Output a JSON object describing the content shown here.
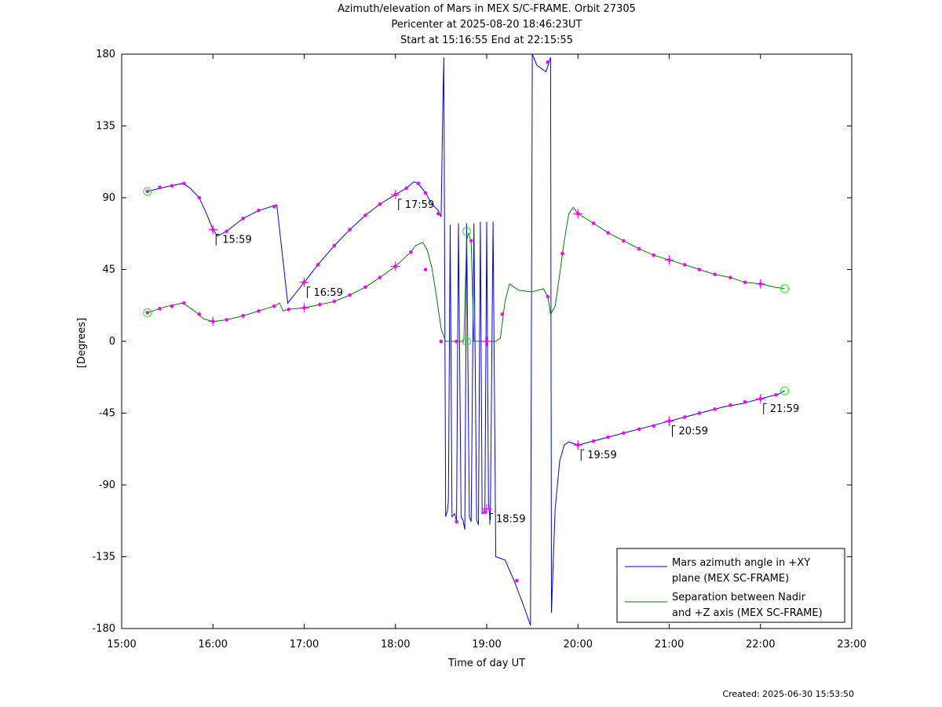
{
  "header": {
    "title_line1": "Azimuth/elevation of Mars in MEX S/C-FRAME.  Orbit 27305",
    "title_line2": "Pericenter at 2025-08-20 18:46:23UT",
    "title_line3": "Start at 15:16:55 End at 22:15:55"
  },
  "footer": {
    "created": "Created: 2025-06-30 15:53:50"
  },
  "colors": {
    "azimuth": "#0000ff",
    "separation": "#008000",
    "marker": "#ff00ff",
    "endpoint": "#00ff00",
    "axis": "#000000"
  },
  "chart_data": {
    "type": "line",
    "xlabel": "Time of day UT",
    "ylabel": "[Degrees]",
    "xlim": [
      15.0,
      23.0
    ],
    "ylim": [
      -180,
      180
    ],
    "xticks": [
      15,
      16,
      17,
      18,
      19,
      20,
      21,
      22,
      23
    ],
    "xtick_labels": [
      "15:00",
      "16:00",
      "17:00",
      "18:00",
      "19:00",
      "20:00",
      "21:00",
      "22:00",
      "23:00"
    ],
    "yticks": [
      180,
      135,
      90,
      45,
      0,
      -45,
      -90,
      -135,
      -180
    ],
    "ytick_labels": [
      "180",
      "135",
      "90",
      "45",
      "0",
      "-45",
      "-90",
      "-135",
      "-180"
    ],
    "legend_position": "bottom-right",
    "series": [
      {
        "name": "Mars azimuth angle in +XY plane (MEX SC-FRAME)",
        "legend_lines": [
          "Mars azimuth angle in +XY",
          "plane (MEX SC-FRAME)"
        ],
        "color": "#0000ff",
        "points": [
          [
            15.282,
            94
          ],
          [
            15.5,
            97
          ],
          [
            15.67,
            99
          ],
          [
            15.75,
            96
          ],
          [
            15.85,
            90
          ],
          [
            15.93,
            80
          ],
          [
            16.0,
            70
          ],
          [
            16.05,
            66
          ],
          [
            16.15,
            69
          ],
          [
            16.33,
            77
          ],
          [
            16.5,
            82
          ],
          [
            16.7,
            85.5
          ],
          [
            16.82,
            24
          ],
          [
            17.0,
            37
          ],
          [
            17.15,
            48
          ],
          [
            17.33,
            60
          ],
          [
            17.5,
            70
          ],
          [
            17.67,
            79
          ],
          [
            17.83,
            86
          ],
          [
            18.0,
            92
          ],
          [
            18.12,
            96
          ],
          [
            18.2,
            100
          ],
          [
            18.25,
            99
          ],
          [
            18.33,
            93
          ],
          [
            18.4,
            86
          ],
          [
            18.47,
            82
          ],
          [
            18.5,
            78
          ],
          [
            18.52,
            150
          ],
          [
            18.53,
            178
          ],
          [
            18.55,
            -110
          ],
          [
            18.57,
            -106
          ],
          [
            18.58,
            -100
          ],
          [
            18.6,
            73
          ],
          [
            18.62,
            -110
          ],
          [
            18.65,
            -108
          ],
          [
            18.67,
            -113
          ],
          [
            18.69,
            74
          ],
          [
            18.72,
            -110
          ],
          [
            18.74,
            -112
          ],
          [
            18.76,
            -118
          ],
          [
            18.78,
            74
          ],
          [
            18.81,
            -110
          ],
          [
            18.83,
            -113
          ],
          [
            18.86,
            74
          ],
          [
            18.89,
            -112
          ],
          [
            18.91,
            -115
          ],
          [
            18.93,
            75
          ],
          [
            18.95,
            -108
          ],
          [
            18.98,
            -107
          ],
          [
            19.0,
            75
          ],
          [
            19.02,
            -102
          ],
          [
            19.04,
            -112
          ],
          [
            19.07,
            75
          ],
          [
            19.1,
            -135
          ],
          [
            19.2,
            -137
          ],
          [
            19.3,
            -150
          ],
          [
            19.4,
            -165
          ],
          [
            19.48,
            -178
          ],
          [
            19.5,
            180
          ],
          [
            19.55,
            173
          ],
          [
            19.65,
            169
          ],
          [
            19.7,
            178
          ],
          [
            19.71,
            -170
          ],
          [
            19.75,
            -105
          ],
          [
            19.8,
            -75
          ],
          [
            19.85,
            -65
          ],
          [
            19.9,
            -63
          ],
          [
            20.0,
            -65
          ],
          [
            20.2,
            -62
          ],
          [
            20.4,
            -59
          ],
          [
            20.6,
            -56
          ],
          [
            20.8,
            -53
          ],
          [
            21.0,
            -50
          ],
          [
            21.2,
            -47
          ],
          [
            21.4,
            -44
          ],
          [
            21.6,
            -41
          ],
          [
            21.8,
            -39
          ],
          [
            22.0,
            -36
          ],
          [
            22.2,
            -33
          ],
          [
            22.265,
            -31
          ]
        ],
        "markers": [
          [
            15.282,
            94
          ],
          [
            15.417,
            96.5
          ],
          [
            15.55,
            97.5
          ],
          [
            15.683,
            99
          ],
          [
            15.85,
            90
          ],
          [
            16.0,
            70
          ],
          [
            16.15,
            69
          ],
          [
            16.33,
            77
          ],
          [
            16.5,
            82
          ],
          [
            16.67,
            84.5
          ],
          [
            17.0,
            37
          ],
          [
            17.15,
            48
          ],
          [
            17.33,
            60
          ],
          [
            17.5,
            70
          ],
          [
            17.67,
            79
          ],
          [
            17.83,
            86
          ],
          [
            18.0,
            92
          ],
          [
            18.12,
            96
          ],
          [
            18.25,
            99
          ],
          [
            18.33,
            93
          ],
          [
            18.47,
            80
          ],
          [
            18.67,
            -113
          ],
          [
            18.98,
            -107
          ],
          [
            19.33,
            -150
          ],
          [
            19.67,
            175
          ],
          [
            20.0,
            -65
          ],
          [
            20.17,
            -62.5
          ],
          [
            20.33,
            -60
          ],
          [
            20.5,
            -57.5
          ],
          [
            20.67,
            -55
          ],
          [
            20.83,
            -53
          ],
          [
            21.0,
            -50
          ],
          [
            21.17,
            -47.5
          ],
          [
            21.33,
            -45
          ],
          [
            21.5,
            -42.5
          ],
          [
            21.67,
            -40
          ],
          [
            21.83,
            -38
          ],
          [
            22.0,
            -36
          ],
          [
            22.17,
            -33.5
          ]
        ],
        "plus_markers": [
          [
            16.0,
            70
          ],
          [
            17.0,
            37
          ],
          [
            18.0,
            92
          ],
          [
            19.0,
            -105
          ],
          [
            20.0,
            -65
          ],
          [
            21.0,
            -50
          ],
          [
            22.0,
            -36
          ]
        ],
        "circle_markers": [
          [
            15.282,
            94
          ],
          [
            22.265,
            -31
          ]
        ],
        "hour_labels": [
          {
            "x": 16.0,
            "y": 70,
            "text": "15:59"
          },
          {
            "x": 17.0,
            "y": 37,
            "text": "16:59"
          },
          {
            "x": 18.0,
            "y": 92,
            "text": "17:59"
          },
          {
            "x": 19.0,
            "y": -105,
            "text": "18:59"
          },
          {
            "x": 20.0,
            "y": -65,
            "text": "19:59"
          },
          {
            "x": 21.0,
            "y": -50,
            "text": "20:59"
          },
          {
            "x": 22.0,
            "y": -36,
            "text": "21:59"
          }
        ]
      },
      {
        "name": "Separation between Nadir and +Z axis (MEX SC-FRAME)",
        "legend_lines": [
          "Separation between Nadir",
          "and +Z axis (MEX SC-FRAME)"
        ],
        "color": "#008000",
        "points": [
          [
            15.282,
            18
          ],
          [
            15.5,
            22
          ],
          [
            15.67,
            24
          ],
          [
            15.8,
            19
          ],
          [
            15.9,
            14
          ],
          [
            16.0,
            12.5
          ],
          [
            16.15,
            13.5
          ],
          [
            16.33,
            16
          ],
          [
            16.5,
            19
          ],
          [
            16.67,
            22
          ],
          [
            16.73,
            24
          ],
          [
            16.77,
            19
          ],
          [
            16.82,
            20
          ],
          [
            17.0,
            21
          ],
          [
            17.17,
            23
          ],
          [
            17.33,
            25
          ],
          [
            17.5,
            29
          ],
          [
            17.67,
            34
          ],
          [
            17.83,
            40
          ],
          [
            18.0,
            47
          ],
          [
            18.17,
            56
          ],
          [
            18.22,
            60
          ],
          [
            18.3,
            62
          ],
          [
            18.35,
            57
          ],
          [
            18.4,
            46
          ],
          [
            18.45,
            28
          ],
          [
            18.5,
            8
          ],
          [
            18.55,
            0
          ],
          [
            18.75,
            0
          ],
          [
            18.78,
            63
          ],
          [
            18.8,
            68
          ],
          [
            18.83,
            62
          ],
          [
            18.86,
            0
          ],
          [
            19.0,
            0
          ],
          [
            19.1,
            0
          ],
          [
            19.15,
            2
          ],
          [
            19.2,
            25
          ],
          [
            19.25,
            36
          ],
          [
            19.35,
            32
          ],
          [
            19.5,
            31
          ],
          [
            19.62,
            33
          ],
          [
            19.67,
            28
          ],
          [
            19.7,
            17
          ],
          [
            19.75,
            22
          ],
          [
            19.8,
            42
          ],
          [
            19.85,
            63
          ],
          [
            19.9,
            80
          ],
          [
            19.95,
            84
          ],
          [
            20.0,
            80
          ],
          [
            20.17,
            74
          ],
          [
            20.33,
            68
          ],
          [
            20.5,
            63
          ],
          [
            20.67,
            58
          ],
          [
            20.83,
            54
          ],
          [
            21.0,
            51
          ],
          [
            21.17,
            48
          ],
          [
            21.33,
            45
          ],
          [
            21.5,
            42
          ],
          [
            21.67,
            40
          ],
          [
            21.83,
            37
          ],
          [
            22.0,
            36
          ],
          [
            22.15,
            34
          ],
          [
            22.265,
            33
          ]
        ],
        "markers": [
          [
            15.282,
            18
          ],
          [
            15.417,
            20.5
          ],
          [
            15.55,
            22
          ],
          [
            15.683,
            24
          ],
          [
            15.85,
            17
          ],
          [
            16.0,
            12.5
          ],
          [
            16.15,
            13.5
          ],
          [
            16.33,
            16
          ],
          [
            16.5,
            19
          ],
          [
            16.67,
            22
          ],
          [
            16.83,
            20
          ],
          [
            17.0,
            21
          ],
          [
            17.17,
            23
          ],
          [
            17.33,
            25
          ],
          [
            17.5,
            29
          ],
          [
            17.67,
            34
          ],
          [
            17.83,
            40
          ],
          [
            18.0,
            47
          ],
          [
            18.17,
            56
          ],
          [
            18.33,
            45
          ],
          [
            18.5,
            0
          ],
          [
            18.67,
            0
          ],
          [
            18.83,
            63
          ],
          [
            19.0,
            0
          ],
          [
            19.17,
            17
          ],
          [
            19.67,
            28
          ],
          [
            19.83,
            55
          ],
          [
            20.0,
            80
          ],
          [
            20.17,
            74
          ],
          [
            20.33,
            68
          ],
          [
            20.5,
            63
          ],
          [
            20.67,
            58
          ],
          [
            20.83,
            54
          ],
          [
            21.0,
            51
          ],
          [
            21.17,
            48
          ],
          [
            21.33,
            45
          ],
          [
            21.5,
            42
          ],
          [
            21.67,
            40
          ],
          [
            21.83,
            37
          ],
          [
            22.0,
            36
          ]
        ],
        "plus_markers": [
          [
            16.0,
            12.5
          ],
          [
            17.0,
            21
          ],
          [
            18.0,
            47
          ],
          [
            19.0,
            0
          ],
          [
            20.0,
            80
          ],
          [
            21.0,
            51
          ],
          [
            22.0,
            36
          ]
        ],
        "circle_markers": [
          [
            15.282,
            18
          ],
          [
            18.78,
            69
          ],
          [
            18.78,
            0
          ],
          [
            22.265,
            33
          ]
        ]
      }
    ]
  }
}
